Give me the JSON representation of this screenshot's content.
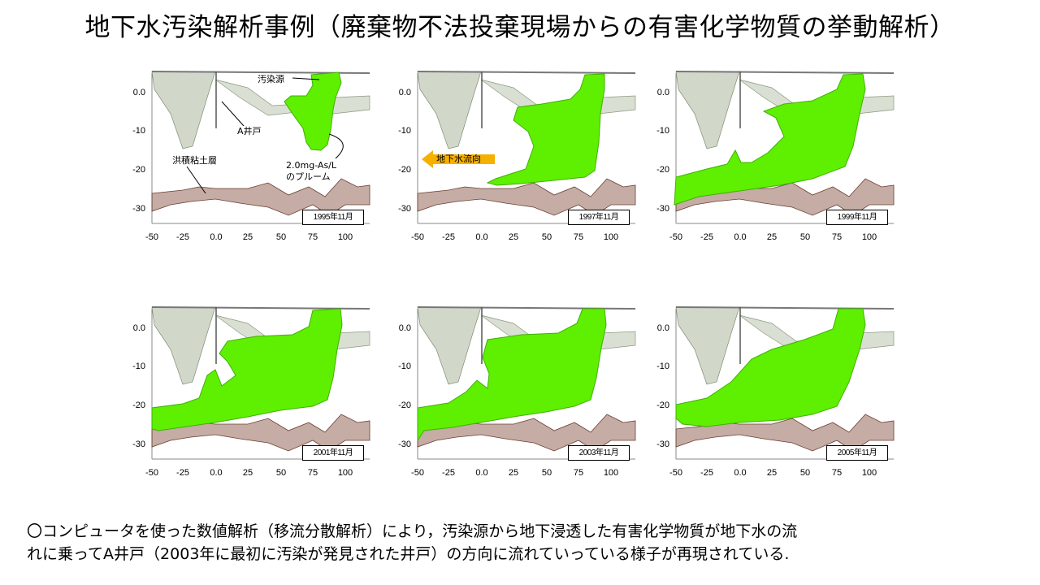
{
  "title": "地下水汚染解析事例（廃棄物不法投棄現場からの有害化学物質の挙動解析）",
  "axes": {
    "y_ticks": [
      "0.0",
      "-10",
      "-20",
      "-30"
    ],
    "x_ticks": [
      "-50",
      "-25",
      "0.0",
      "25",
      "50",
      "75",
      "100"
    ]
  },
  "panels": [
    {
      "date": "1995年11月"
    },
    {
      "date": "1997年11月"
    },
    {
      "date": "1999年11月"
    },
    {
      "date": "2001年11月"
    },
    {
      "date": "2003年11月"
    },
    {
      "date": "2005年11月"
    }
  ],
  "annotations": {
    "source": "汚染源",
    "well": "A井戸",
    "clay": "洪積粘土層",
    "plume_line1": "2.0mg-As/L",
    "plume_line2": "のプルーム",
    "flow": "地下水流向"
  },
  "colors": {
    "plume": "#5ef000",
    "clay": "#8b5a4a",
    "surface": "#9aa88a",
    "flow_arrow": "#f5b000"
  },
  "caption": {
    "line1": "〇コンピュータを使った数値解析（移流分散解析）により，汚染源から地下浸透した有害化学物質が地下水の流",
    "line2": "れに乗ってA井戸（2003年に最初に汚染が発見された井戸）の方向に流れていっている様子が再現されている."
  }
}
